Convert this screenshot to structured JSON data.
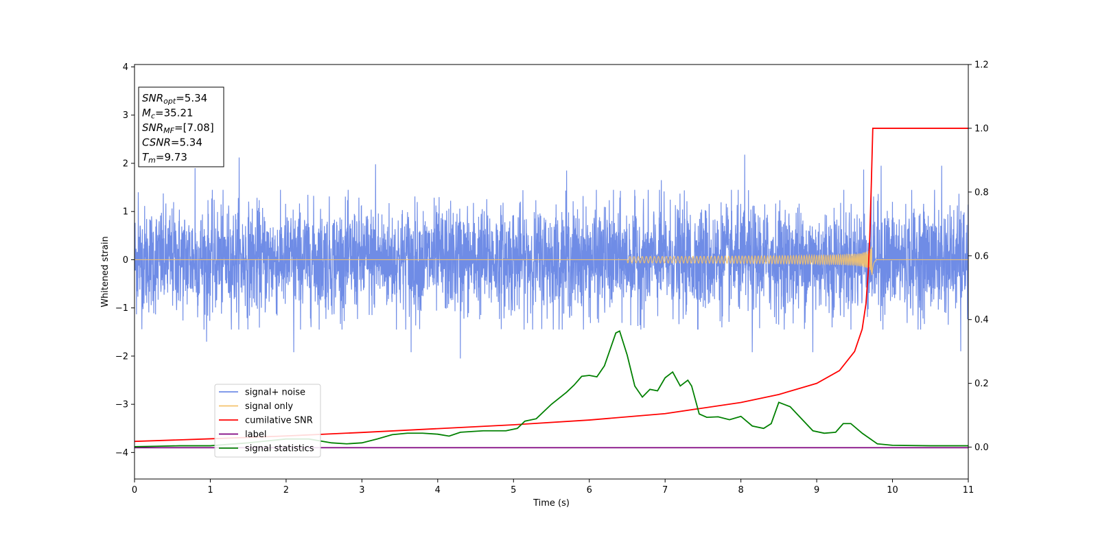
{
  "chart_data": {
    "type": "line",
    "xlabel": "Time (s)",
    "ylabel": "Whitened strain",
    "xlim": [
      0,
      11
    ],
    "ylim_left": [
      -4.55,
      4.05
    ],
    "ylim_right": [
      -0.1,
      1.2
    ],
    "x_ticks": [
      "0",
      "1",
      "2",
      "3",
      "4",
      "5",
      "6",
      "7",
      "8",
      "9",
      "10",
      "11"
    ],
    "y_ticks_left": [
      "4",
      "3",
      "2",
      "1",
      "0",
      "−1",
      "−2",
      "−3",
      "−4"
    ],
    "y_ticks_right": [
      "1.2",
      "1.0",
      "0.8",
      "0.6",
      "0.4",
      "0.2",
      "0.0"
    ],
    "grid": false,
    "legend_position": "lower-left",
    "annotation": {
      "lines": [
        {
          "base": "SNR",
          "sub": "opt",
          "value": "=5.34"
        },
        {
          "base": "M",
          "sub": "c",
          "value": "=35.21"
        },
        {
          "base": "SNR",
          "sub": "MF",
          "value": "=[7.08]"
        },
        {
          "base": "CSNR",
          "sub": "",
          "value": "=5.34"
        },
        {
          "base": "T",
          "sub": "m",
          "value": "=9.73"
        }
      ]
    },
    "colors": {
      "signal_noise": "#6f8ce6",
      "signal_only": "#f5c36b",
      "cumulative_snr": "#ff0000",
      "label": "#7f007f",
      "signal_statistics": "#008000"
    },
    "series": [
      {
        "name": "signal+ noise",
        "axis": "left",
        "description_values": {
          "noise_std": 0.55,
          "typical_max": 1.4,
          "typical_min": -1.4
        },
        "peaks": [
          {
            "x": 0.05,
            "y": 1.4
          },
          {
            "x": 0.8,
            "y": 1.9
          },
          {
            "x": 1.38,
            "y": 2.12
          },
          {
            "x": 3.18,
            "y": 1.98
          },
          {
            "x": 5.7,
            "y": 1.85
          },
          {
            "x": 6.95,
            "y": 1.65
          },
          {
            "x": 8.05,
            "y": 2.18
          },
          {
            "x": 9.62,
            "y": 1.87
          },
          {
            "x": 9.85,
            "y": 1.95
          },
          {
            "x": 10.65,
            "y": 1.95
          },
          {
            "x": 0.95,
            "y": -1.7
          },
          {
            "x": 2.1,
            "y": -1.92
          },
          {
            "x": 3.65,
            "y": -1.92
          },
          {
            "x": 4.3,
            "y": -2.05
          },
          {
            "x": 8.15,
            "y": -1.92
          },
          {
            "x": 8.95,
            "y": -1.92
          },
          {
            "x": 10.9,
            "y": -1.9
          }
        ]
      },
      {
        "name": "signal only",
        "axis": "left",
        "description_values": {
          "chirp_start_x": 6.5,
          "merger_x": 9.73,
          "peak_amplitude": 0.35
        }
      },
      {
        "name": "cumilative SNR",
        "axis": "right",
        "x": [
          0,
          1,
          2,
          3,
          4,
          5,
          6,
          7,
          8,
          8.5,
          9,
          9.3,
          9.5,
          9.6,
          9.65,
          9.68,
          9.7,
          9.72,
          9.74,
          9.76,
          11
        ],
        "y": [
          0.018,
          0.026,
          0.035,
          0.046,
          0.058,
          0.07,
          0.085,
          0.105,
          0.14,
          0.165,
          0.2,
          0.24,
          0.3,
          0.37,
          0.45,
          0.55,
          0.66,
          0.82,
          1.0,
          1.0,
          1.0
        ]
      },
      {
        "name": "label",
        "axis": "left",
        "x": [
          0,
          11
        ],
        "y": [
          -3.9,
          -3.9
        ]
      },
      {
        "name": "signal statistics",
        "axis": "left",
        "x": [
          0,
          0.3,
          0.6,
          1.0,
          1.5,
          2.0,
          2.3,
          2.6,
          2.8,
          3.0,
          3.2,
          3.4,
          3.6,
          3.8,
          4.0,
          4.15,
          4.3,
          4.6,
          4.9,
          5.05,
          5.15,
          5.3,
          5.5,
          5.7,
          5.8,
          5.9,
          6.0,
          6.1,
          6.2,
          6.35,
          6.4,
          6.5,
          6.6,
          6.7,
          6.8,
          6.9,
          7.0,
          7.1,
          7.2,
          7.3,
          7.35,
          7.45,
          7.55,
          7.7,
          7.85,
          8.0,
          8.15,
          8.3,
          8.4,
          8.5,
          8.65,
          8.8,
          8.95,
          9.1,
          9.25,
          9.35,
          9.45,
          9.6,
          9.8,
          10.0,
          10.5,
          11.0
        ],
        "y": [
          -3.88,
          -3.87,
          -3.86,
          -3.86,
          -3.8,
          -3.72,
          -3.72,
          -3.8,
          -3.82,
          -3.8,
          -3.72,
          -3.63,
          -3.6,
          -3.6,
          -3.62,
          -3.66,
          -3.58,
          -3.55,
          -3.55,
          -3.5,
          -3.35,
          -3.3,
          -3.0,
          -2.75,
          -2.6,
          -2.42,
          -2.4,
          -2.43,
          -2.2,
          -1.52,
          -1.48,
          -1.98,
          -2.62,
          -2.85,
          -2.69,
          -2.72,
          -2.45,
          -2.33,
          -2.62,
          -2.5,
          -2.62,
          -3.2,
          -3.27,
          -3.26,
          -3.32,
          -3.25,
          -3.45,
          -3.5,
          -3.4,
          -2.96,
          -3.05,
          -3.3,
          -3.55,
          -3.6,
          -3.58,
          -3.4,
          -3.4,
          -3.6,
          -3.82,
          -3.85,
          -3.86,
          -3.86
        ]
      }
    ]
  }
}
